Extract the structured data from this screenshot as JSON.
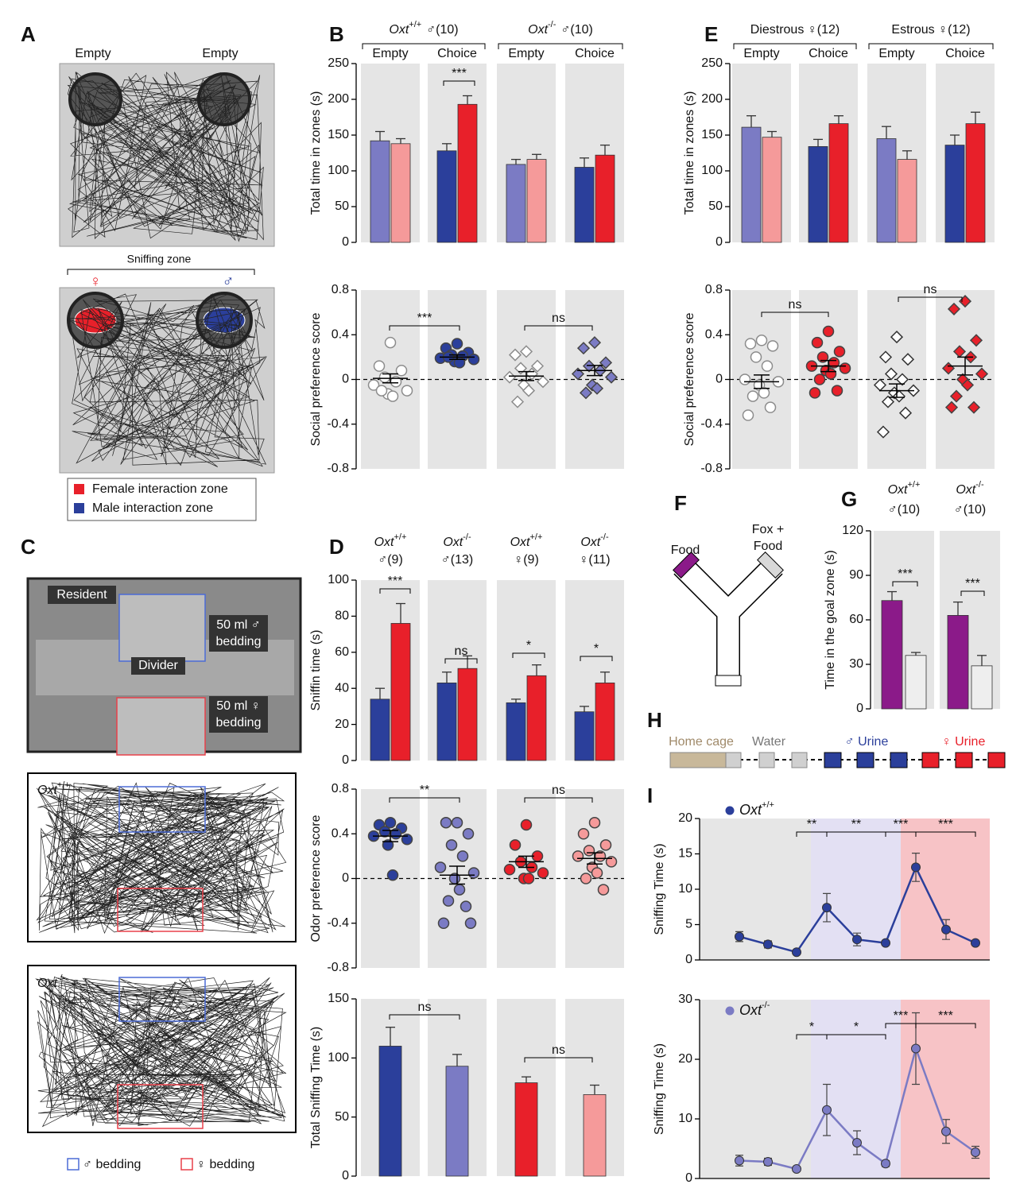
{
  "panel_labels": [
    "A",
    "B",
    "C",
    "D",
    "E",
    "F",
    "G",
    "H",
    "I"
  ],
  "panel_a": {
    "top_labels": [
      "Empty",
      "Empty"
    ],
    "zone": "Sniffing zone",
    "female": "♀",
    "male": "♂",
    "legend": [
      "Female interaction zone",
      "Male interaction zone"
    ]
  },
  "panel_c": {
    "resident": "Resident",
    "male_bedding": [
      "50 ml ♂",
      "bedding"
    ],
    "divider": "Divider",
    "female_bedding": [
      "50 ml ♀",
      "bedding"
    ],
    "tracks": [
      {
        "gene": "Oxt",
        "genotype": "+/+",
        "label": "♂"
      },
      {
        "gene": "Oxt",
        "genotype": "-/-",
        "label": "♂"
      }
    ],
    "legend": [
      "♂ bedding",
      "♀ bedding"
    ]
  },
  "panel_f": {
    "left": "Food",
    "right": [
      "Fox +",
      "Food"
    ]
  },
  "panel_h": {
    "stages": [
      "Home cage",
      "Water",
      "♂ Urine",
      "♀ Urine"
    ]
  },
  "chart_data": [
    {
      "type": "bar",
      "groups": [
        {
          "gene": "Oxt",
          "genotype": "+/+",
          "label": "♂(10)"
        },
        {
          "gene": "Oxt",
          "genotype": "-/-",
          "label": "♂(10)"
        }
      ],
      "categories": [
        "Empty",
        "Choice",
        "Empty",
        "Choice"
      ],
      "ylabel": "Total time in zones (s)",
      "ylim": [
        0,
        250
      ],
      "yticks": [
        0,
        50,
        100,
        150,
        200,
        250
      ],
      "series": [
        {
          "colors": [
            "#7b7bc4",
            "#2b3f9b",
            "#7b7bc4",
            "#2b3f9b"
          ],
          "values": [
            142,
            128,
            109,
            105
          ],
          "errors": [
            13,
            10,
            7,
            13
          ]
        },
        {
          "colors": [
            "#f59a9a",
            "#e8202a",
            "#f59a9a",
            "#e8202a"
          ],
          "values": [
            138,
            193,
            116,
            122
          ],
          "errors": [
            7,
            12,
            7,
            14
          ]
        }
      ],
      "annotations": [
        "***"
      ]
    },
    {
      "type": "dot",
      "ylabel": "Social preference score",
      "ylim": [
        -0.8,
        0.8
      ],
      "yticks": [
        -0.8,
        -0.4,
        0,
        0.4,
        0.8
      ],
      "series": [
        {
          "marker": "circle",
          "color": "#8c8c8c",
          "filled": false,
          "values": [
            0.33,
            0.12,
            0.08,
            0.02,
            -0.02,
            -0.05,
            -0.1,
            -0.13,
            -0.15,
            -0.1
          ],
          "mean": 0.01,
          "sem": 0.04
        },
        {
          "marker": "circle",
          "color": "#2b3f9b",
          "filled": true,
          "values": [
            0.32,
            0.28,
            0.24,
            0.22,
            0.21,
            0.19,
            0.18,
            0.16,
            0.15,
            0.2
          ],
          "mean": 0.2,
          "sem": 0.02
        },
        {
          "marker": "diamond",
          "color": "#8c8c8c",
          "filled": false,
          "values": [
            0.25,
            0.22,
            0.12,
            0.1,
            0.05,
            0.02,
            -0.02,
            -0.05,
            -0.1,
            -0.2
          ],
          "mean": 0.03,
          "sem": 0.04
        },
        {
          "marker": "diamond",
          "color": "#7b7bc4",
          "filled": true,
          "values": [
            0.33,
            0.28,
            0.15,
            0.12,
            0.08,
            0.05,
            0.02,
            -0.05,
            -0.08,
            -0.12
          ],
          "mean": 0.08,
          "sem": 0.045
        }
      ],
      "annotations": [
        "***",
        "ns"
      ]
    },
    {
      "type": "bar",
      "groups": [
        {
          "label": "Diestrous ♀(12)"
        },
        {
          "label": "Estrous ♀(12)"
        }
      ],
      "categories": [
        "Empty",
        "Choice",
        "Empty",
        "Choice"
      ],
      "ylabel": "Total time in zones (s)",
      "ylim": [
        0,
        250
      ],
      "yticks": [
        0,
        50,
        100,
        150,
        200,
        250
      ],
      "series": [
        {
          "colors": [
            "#7b7bc4",
            "#2b3f9b",
            "#7b7bc4",
            "#2b3f9b"
          ],
          "values": [
            161,
            134,
            145,
            136
          ],
          "errors": [
            16,
            10,
            17,
            14
          ]
        },
        {
          "colors": [
            "#f59a9a",
            "#e8202a",
            "#f59a9a",
            "#e8202a"
          ],
          "values": [
            147,
            166,
            116,
            166
          ],
          "errors": [
            8,
            11,
            12,
            16
          ]
        }
      ],
      "annotations": []
    },
    {
      "type": "dot",
      "ylabel": "Social preference score",
      "ylim": [
        -0.8,
        0.8
      ],
      "yticks": [
        -0.8,
        -0.4,
        0,
        0.4,
        0.8
      ],
      "series": [
        {
          "marker": "circle",
          "color": "#8c8c8c",
          "filled": false,
          "values": [
            0.35,
            0.32,
            0.3,
            0.2,
            0.12,
            0.0,
            -0.02,
            -0.05,
            -0.12,
            -0.15,
            -0.25,
            -0.32
          ],
          "mean": -0.02,
          "sem": 0.06
        },
        {
          "marker": "circle",
          "color": "#e8202a",
          "filled": true,
          "values": [
            0.43,
            0.33,
            0.25,
            0.2,
            0.15,
            0.12,
            0.1,
            0.08,
            0.05,
            0.0,
            -0.1,
            -0.12
          ],
          "mean": 0.12,
          "sem": 0.05
        },
        {
          "marker": "diamond",
          "color": "#333333",
          "filled": false,
          "values": [
            0.38,
            0.2,
            0.18,
            0.05,
            0.0,
            -0.05,
            -0.1,
            -0.12,
            -0.15,
            -0.2,
            -0.3,
            -0.47
          ],
          "mean": -0.1,
          "sem": 0.06
        },
        {
          "marker": "diamond",
          "color": "#e8202a",
          "filled": true,
          "values": [
            0.7,
            0.63,
            0.35,
            0.25,
            0.2,
            0.1,
            0.05,
            0.0,
            -0.05,
            -0.15,
            -0.25,
            -0.25
          ],
          "mean": 0.12,
          "sem": 0.08
        }
      ],
      "annotations": [
        "ns",
        "ns"
      ]
    },
    {
      "type": "bar",
      "groups": [
        {
          "gene": "Oxt",
          "genotype": "+/+",
          "label": "♂(9)"
        },
        {
          "gene": "Oxt",
          "genotype": "-/-",
          "label": "♂(13)"
        },
        {
          "gene": "Oxt",
          "genotype": "+/+",
          "label": "♀(9)"
        },
        {
          "gene": "Oxt",
          "genotype": "-/-",
          "label": "♀(11)"
        }
      ],
      "ylabel": "Sniffin time (s)",
      "ylim": [
        0,
        100
      ],
      "yticks": [
        0,
        20,
        40,
        60,
        80,
        100
      ],
      "series": [
        {
          "colors": [
            "#2b3f9b",
            "#2b3f9b",
            "#2b3f9b",
            "#2b3f9b"
          ],
          "values": [
            34,
            43,
            32,
            27
          ],
          "errors": [
            6,
            6,
            2,
            3
          ]
        },
        {
          "colors": [
            "#e8202a",
            "#e8202a",
            "#e8202a",
            "#e8202a"
          ],
          "values": [
            76,
            51,
            47,
            43
          ],
          "errors": [
            11,
            7,
            6,
            6
          ]
        }
      ],
      "annotations": [
        "***",
        "ns",
        "*",
        "*"
      ]
    },
    {
      "type": "dot",
      "ylabel": "Odor preference score",
      "ylim": [
        -0.8,
        0.8
      ],
      "yticks": [
        -0.8,
        -0.4,
        0,
        0.4,
        0.8
      ],
      "series": [
        {
          "marker": "circle",
          "color": "#2b3f9b",
          "filled": true,
          "values": [
            0.5,
            0.48,
            0.45,
            0.42,
            0.4,
            0.38,
            0.35,
            0.3,
            0.03
          ],
          "mean": 0.38,
          "sem": 0.05
        },
        {
          "marker": "circle",
          "color": "#7b7bc4",
          "filled": true,
          "values": [
            0.5,
            0.5,
            0.4,
            0.3,
            0.2,
            0.1,
            0.05,
            0.0,
            -0.1,
            -0.2,
            -0.25,
            -0.4,
            -0.4
          ],
          "mean": 0.03,
          "sem": 0.08
        },
        {
          "marker": "circle",
          "color": "#e8202a",
          "filled": true,
          "values": [
            0.48,
            0.3,
            0.2,
            0.15,
            0.1,
            0.08,
            0.05,
            0.0,
            0.0
          ],
          "mean": 0.15,
          "sem": 0.05
        },
        {
          "marker": "circle",
          "color": "#f59a9a",
          "filled": true,
          "values": [
            0.5,
            0.4,
            0.3,
            0.25,
            0.2,
            0.2,
            0.15,
            0.1,
            0.05,
            0.0,
            -0.1
          ],
          "mean": 0.18,
          "sem": 0.05
        }
      ],
      "annotations": [
        "**",
        "ns"
      ]
    },
    {
      "type": "bar",
      "ylabel": "Total Sniffing Time (s)",
      "ylim": [
        0,
        150
      ],
      "yticks": [
        0,
        50,
        100,
        150
      ],
      "series": [
        {
          "colors": [
            "#2b3f9b",
            "#7b7bc4",
            "#e8202a",
            "#f59a9a"
          ],
          "values": [
            110,
            93,
            79,
            69
          ],
          "errors": [
            16,
            10,
            5,
            8
          ]
        }
      ],
      "annotations": [
        "ns",
        "ns"
      ]
    },
    {
      "type": "bar",
      "groups": [
        {
          "gene": "Oxt",
          "genotype": "+/+",
          "label": "♂(10)"
        },
        {
          "gene": "Oxt",
          "genotype": "-/-",
          "label": "♂(10)"
        }
      ],
      "ylabel": "Time in the goal zone (s)",
      "ylim": [
        0,
        120
      ],
      "yticks": [
        0,
        30,
        60,
        90,
        120
      ],
      "series": [
        {
          "colors": [
            "#8b1a89",
            "#8b1a89"
          ],
          "values": [
            73,
            63
          ],
          "errors": [
            6,
            9
          ]
        },
        {
          "colors": [
            "#eeeeee",
            "#eeeeee"
          ],
          "values": [
            36,
            29
          ],
          "errors": [
            2,
            7
          ]
        }
      ],
      "annotations": [
        "***",
        "***"
      ]
    },
    {
      "type": "line",
      "legend": {
        "gene": "Oxt",
        "genotype": "+/+"
      },
      "ylabel": "Sniffing Time (s)",
      "ylim": [
        0,
        20
      ],
      "yticks": [
        0,
        5,
        10,
        15,
        20
      ],
      "series": [
        {
          "color": "#2b3f9b",
          "values": [
            3.3,
            2.2,
            1.1,
            7.4,
            2.9,
            2.4,
            13.1,
            4.3,
            2.4
          ],
          "errors": [
            0.7,
            0.5,
            0.2,
            2,
            0.9,
            0.3,
            2,
            1.4,
            0.3
          ]
        }
      ],
      "annotations": [
        "**",
        "**",
        "***",
        "***"
      ]
    },
    {
      "type": "line",
      "legend": {
        "gene": "Oxt",
        "genotype": "-/-"
      },
      "ylabel": "Sniffing Time (s)",
      "ylim": [
        0,
        30
      ],
      "yticks": [
        0,
        10,
        20,
        30
      ],
      "series": [
        {
          "color": "#7b7bc4",
          "values": [
            3,
            2.8,
            1.6,
            11.5,
            6,
            2.5,
            21.8,
            7.9,
            4.4
          ],
          "errors": [
            0.9,
            0.6,
            0.4,
            4.3,
            2,
            0.5,
            6,
            2,
            1
          ]
        }
      ],
      "annotations": [
        "*",
        "*",
        "***",
        "***"
      ]
    }
  ]
}
